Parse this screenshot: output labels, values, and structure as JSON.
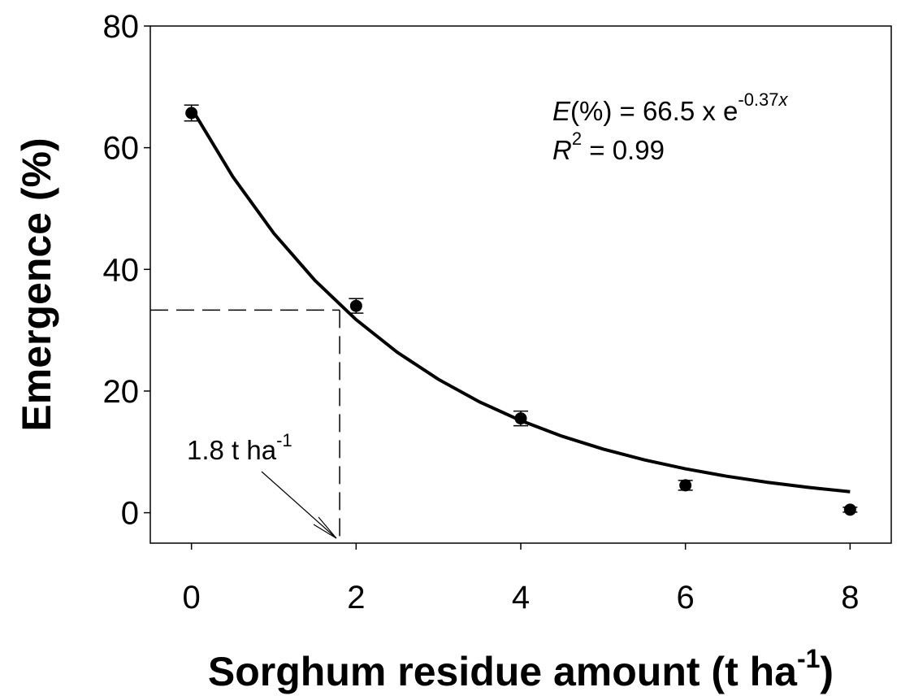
{
  "chart_data": {
    "type": "scatter",
    "x_label": [
      "Sorghum residue amount (t ha",
      "-1",
      ")"
    ],
    "y_label": "Emergence (%)",
    "x": [
      0,
      2,
      4,
      6,
      8
    ],
    "values": [
      65.7,
      34,
      15.5,
      4.5,
      0.5
    ],
    "errors": [
      1.3,
      1.2,
      1.2,
      0.8,
      0.4
    ],
    "color": "#000000",
    "fit": {
      "x": [
        0,
        0.5,
        1,
        1.5,
        2,
        2.5,
        3,
        3.5,
        4,
        4.5,
        5,
        5.5,
        6,
        6.5,
        7,
        7.5,
        8
      ],
      "values": [
        66.5,
        55.27,
        45.93,
        38.18,
        31.73,
        26.37,
        21.92,
        18.21,
        15.14,
        12.58,
        10.46,
        8.69,
        7.22,
        6.0,
        4.99,
        4.15,
        3.45
      ]
    },
    "equation": [
      "E",
      "(%) = 66.5 x e",
      "-0.37",
      "x"
    ],
    "r_squared": [
      "R",
      "2",
      " = 0.99"
    ],
    "reference": {
      "x": 1.8,
      "y": 33.3,
      "label": [
        "1.8 t ha",
        "-1"
      ]
    },
    "xlim": [
      -0.5,
      8.5
    ],
    "ylim": [
      -5,
      80
    ],
    "xticks": [
      0,
      2,
      4,
      6,
      8
    ],
    "yticks": [
      0,
      20,
      40,
      60,
      80
    ]
  }
}
